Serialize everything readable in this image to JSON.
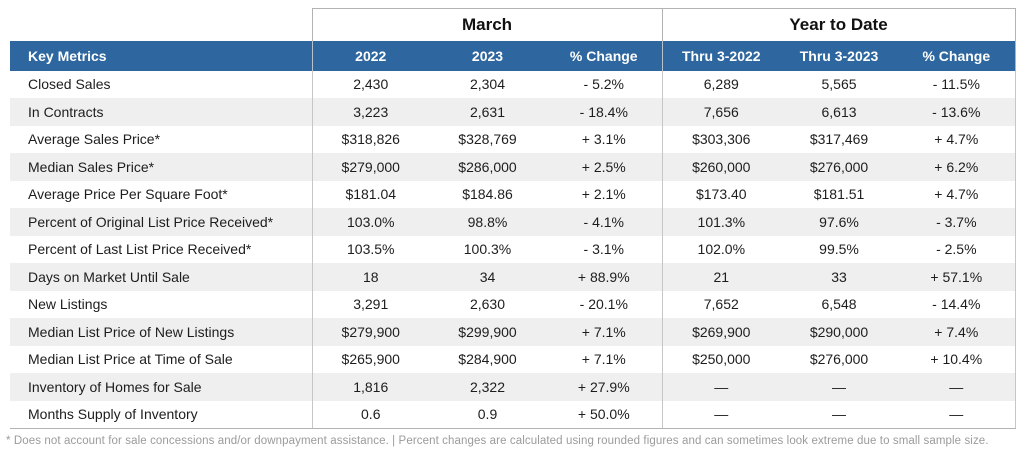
{
  "table": {
    "group_headers": {
      "march": "March",
      "year_to_date": "Year to Date"
    },
    "columns": [
      "Key Metrics",
      "2022",
      "2023",
      "% Change",
      "Thru 3-2022",
      "Thru 3-2023",
      "% Change"
    ],
    "rows": [
      {
        "metric": "Closed Sales",
        "values": [
          "2,430",
          "2,304",
          "- 5.2%",
          "6,289",
          "5,565",
          "- 11.5%"
        ]
      },
      {
        "metric": "In Contracts",
        "values": [
          "3,223",
          "2,631",
          "- 18.4%",
          "7,656",
          "6,613",
          "- 13.6%"
        ]
      },
      {
        "metric": "Average Sales Price*",
        "values": [
          "$318,826",
          "$328,769",
          "+ 3.1%",
          "$303,306",
          "$317,469",
          "+ 4.7%"
        ]
      },
      {
        "metric": "Median Sales Price*",
        "values": [
          "$279,000",
          "$286,000",
          "+ 2.5%",
          "$260,000",
          "$276,000",
          "+ 6.2%"
        ]
      },
      {
        "metric": "Average Price Per Square Foot*",
        "values": [
          "$181.04",
          "$184.86",
          "+ 2.1%",
          "$173.40",
          "$181.51",
          "+ 4.7%"
        ]
      },
      {
        "metric": "Percent of Original List Price Received*",
        "values": [
          "103.0%",
          "98.8%",
          "- 4.1%",
          "101.3%",
          "97.6%",
          "- 3.7%"
        ]
      },
      {
        "metric": "Percent of Last List Price Received*",
        "values": [
          "103.5%",
          "100.3%",
          "- 3.1%",
          "102.0%",
          "99.5%",
          "- 2.5%"
        ]
      },
      {
        "metric": "Days on Market Until Sale",
        "values": [
          "18",
          "34",
          "+ 88.9%",
          "21",
          "33",
          "+ 57.1%"
        ]
      },
      {
        "metric": "New Listings",
        "values": [
          "3,291",
          "2,630",
          "- 20.1%",
          "7,652",
          "6,548",
          "- 14.4%"
        ]
      },
      {
        "metric": "Median List Price of New Listings",
        "values": [
          "$279,900",
          "$299,900",
          "+ 7.1%",
          "$269,900",
          "$290,000",
          "+ 7.4%"
        ]
      },
      {
        "metric": "Median List Price at Time of Sale",
        "values": [
          "$265,900",
          "$284,900",
          "+ 7.1%",
          "$250,000",
          "$276,000",
          "+ 10.4%"
        ]
      },
      {
        "metric": "Inventory of Homes for Sale",
        "values": [
          "1,816",
          "2,322",
          "+ 27.9%",
          "—",
          "—",
          "—"
        ]
      },
      {
        "metric": "Months Supply of Inventory",
        "values": [
          "0.6",
          "0.9",
          "+ 50.0%",
          "—",
          "—",
          "—"
        ]
      }
    ]
  },
  "footnote": "* Does not account for sale concessions and/or downpayment assistance. | Percent changes are calculated using rounded figures and can sometimes look extreme due to small sample size.",
  "colors": {
    "header_bg": "#2e679f",
    "header_text": "#ffffff",
    "row_alt": "#efefef",
    "border": "#b3b3b3",
    "body_text": "#1d1d1d",
    "footnote_text": "#9b9b9b"
  }
}
